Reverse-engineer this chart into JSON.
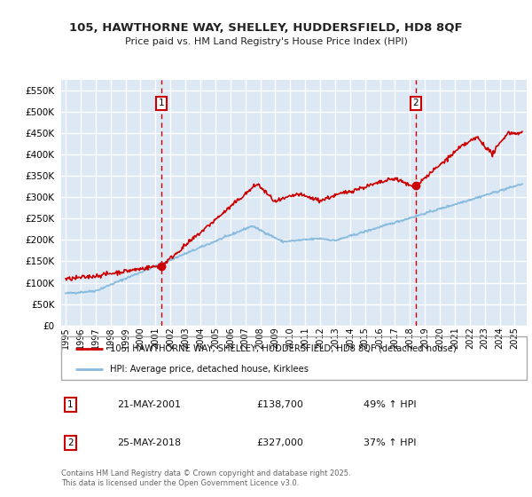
{
  "title_line1": "105, HAWTHORNE WAY, SHELLEY, HUDDERSFIELD, HD8 8QF",
  "title_line2": "Price paid vs. HM Land Registry's House Price Index (HPI)",
  "legend_label_red": "105, HAWTHORNE WAY, SHELLEY, HUDDERSFIELD, HD8 8QF (detached house)",
  "legend_label_blue": "HPI: Average price, detached house, Kirklees",
  "annotation1_label": "1",
  "annotation1_date": "21-MAY-2001",
  "annotation1_price": "£138,700",
  "annotation1_hpi": "49% ↑ HPI",
  "annotation2_label": "2",
  "annotation2_date": "25-MAY-2018",
  "annotation2_price": "£327,000",
  "annotation2_hpi": "37% ↑ HPI",
  "footer": "Contains HM Land Registry data © Crown copyright and database right 2025.\nThis data is licensed under the Open Government Licence v3.0.",
  "ylim": [
    0,
    575000
  ],
  "yticks": [
    0,
    50000,
    100000,
    150000,
    200000,
    250000,
    300000,
    350000,
    400000,
    450000,
    500000,
    550000
  ],
  "fig_bg_color": "#ffffff",
  "plot_bg_color": "#dde8f5",
  "grid_color": "#ffffff",
  "red_color": "#cc0000",
  "blue_color": "#88bbdd",
  "sale1_x": 2001.38,
  "sale1_y": 138700,
  "sale2_x": 2018.39,
  "sale2_y": 327000,
  "vline_color": "#cc0000",
  "marker_box_color": "#cc0000",
  "xtick_years": [
    1995,
    1996,
    1997,
    1998,
    1999,
    2000,
    2001,
    2002,
    2003,
    2004,
    2005,
    2006,
    2007,
    2008,
    2009,
    2010,
    2011,
    2012,
    2013,
    2014,
    2015,
    2016,
    2017,
    2018,
    2019,
    2020,
    2021,
    2022,
    2023,
    2024,
    2025
  ]
}
